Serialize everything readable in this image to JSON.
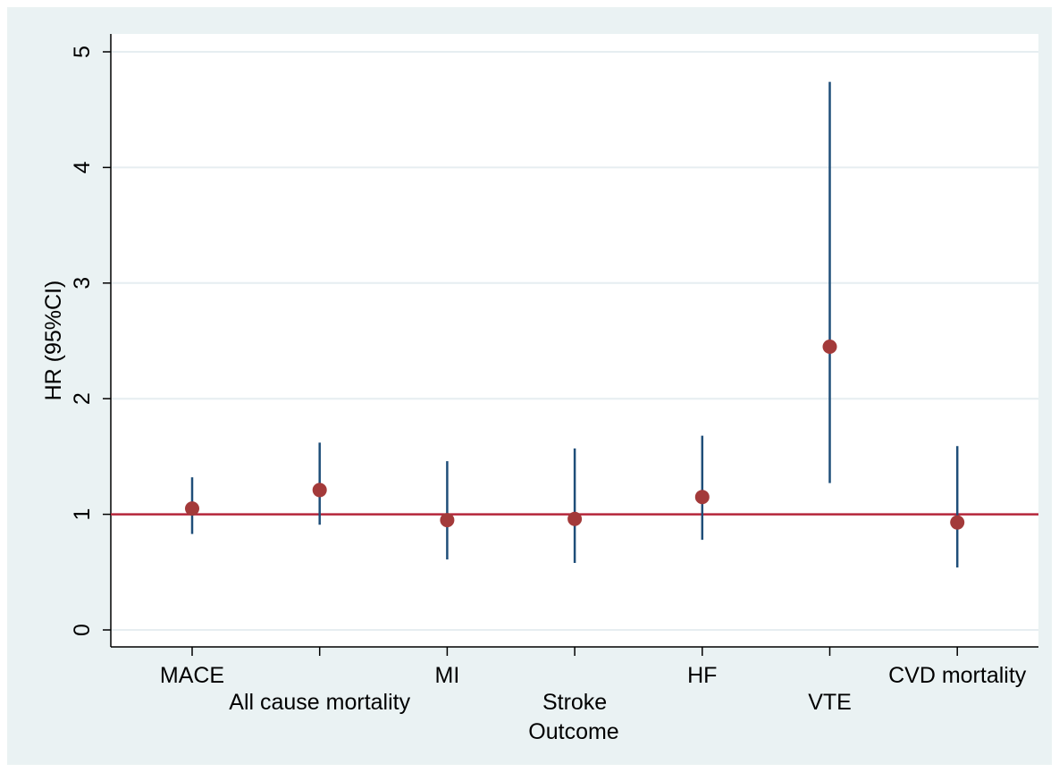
{
  "chart_data": {
    "type": "scatter",
    "subtype": "point-estimate-with-confidence-intervals",
    "categories": [
      "MACE",
      "All cause mortality",
      "MI",
      "Stroke",
      "HF",
      "VTE",
      "CVD mortality"
    ],
    "series": [
      {
        "name": "",
        "hr": [
          1.05,
          1.21,
          0.95,
          0.96,
          1.15,
          2.45,
          0.93
        ],
        "ci_lower": [
          0.83,
          0.91,
          0.61,
          0.58,
          0.78,
          1.27,
          0.54
        ],
        "ci_upper": [
          1.32,
          1.62,
          1.46,
          1.57,
          1.68,
          4.74,
          1.59
        ]
      }
    ],
    "title": "",
    "xlabel": "Outcome",
    "ylabel": "HR (95%CI)",
    "ylim": [
      0,
      5
    ],
    "yticks": [
      0,
      1,
      2,
      3,
      4,
      5
    ],
    "reference_line": 1,
    "grid": true,
    "legend": "none",
    "colors": {
      "point": "#a33a3a",
      "ci": "#1f4e79",
      "reference": "#b5253a",
      "grid": "#e6eef1",
      "plot_bg": "#ffffff",
      "outer_bg": "#eaf2f3"
    }
  }
}
